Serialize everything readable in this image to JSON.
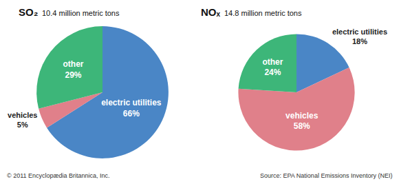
{
  "chart_data": [
    {
      "type": "pie",
      "title": "SO₂",
      "subtitle": "10.4 million metric tons",
      "categories": [
        "electric utilities",
        "vehicles",
        "other"
      ],
      "values": [
        66,
        5,
        29
      ],
      "value_labels": [
        "66%",
        "5%",
        "29%"
      ],
      "colors": [
        "#4a86c6",
        "#e0808a",
        "#3db679"
      ],
      "data_labels": true
    },
    {
      "type": "pie",
      "title": "NOₓ",
      "subtitle": "14.8 million metric tons",
      "categories": [
        "electric utilities",
        "vehicles",
        "other"
      ],
      "values": [
        18,
        58,
        24
      ],
      "value_labels": [
        "18%",
        "58%",
        "24%"
      ],
      "colors": [
        "#4a86c6",
        "#e0808a",
        "#3db679"
      ],
      "data_labels": true
    }
  ],
  "annotations": [
    "© 2011 Encyclopædia Britannica, Inc.",
    "Source: EPA National Emissions Inventory (NEI)"
  ]
}
